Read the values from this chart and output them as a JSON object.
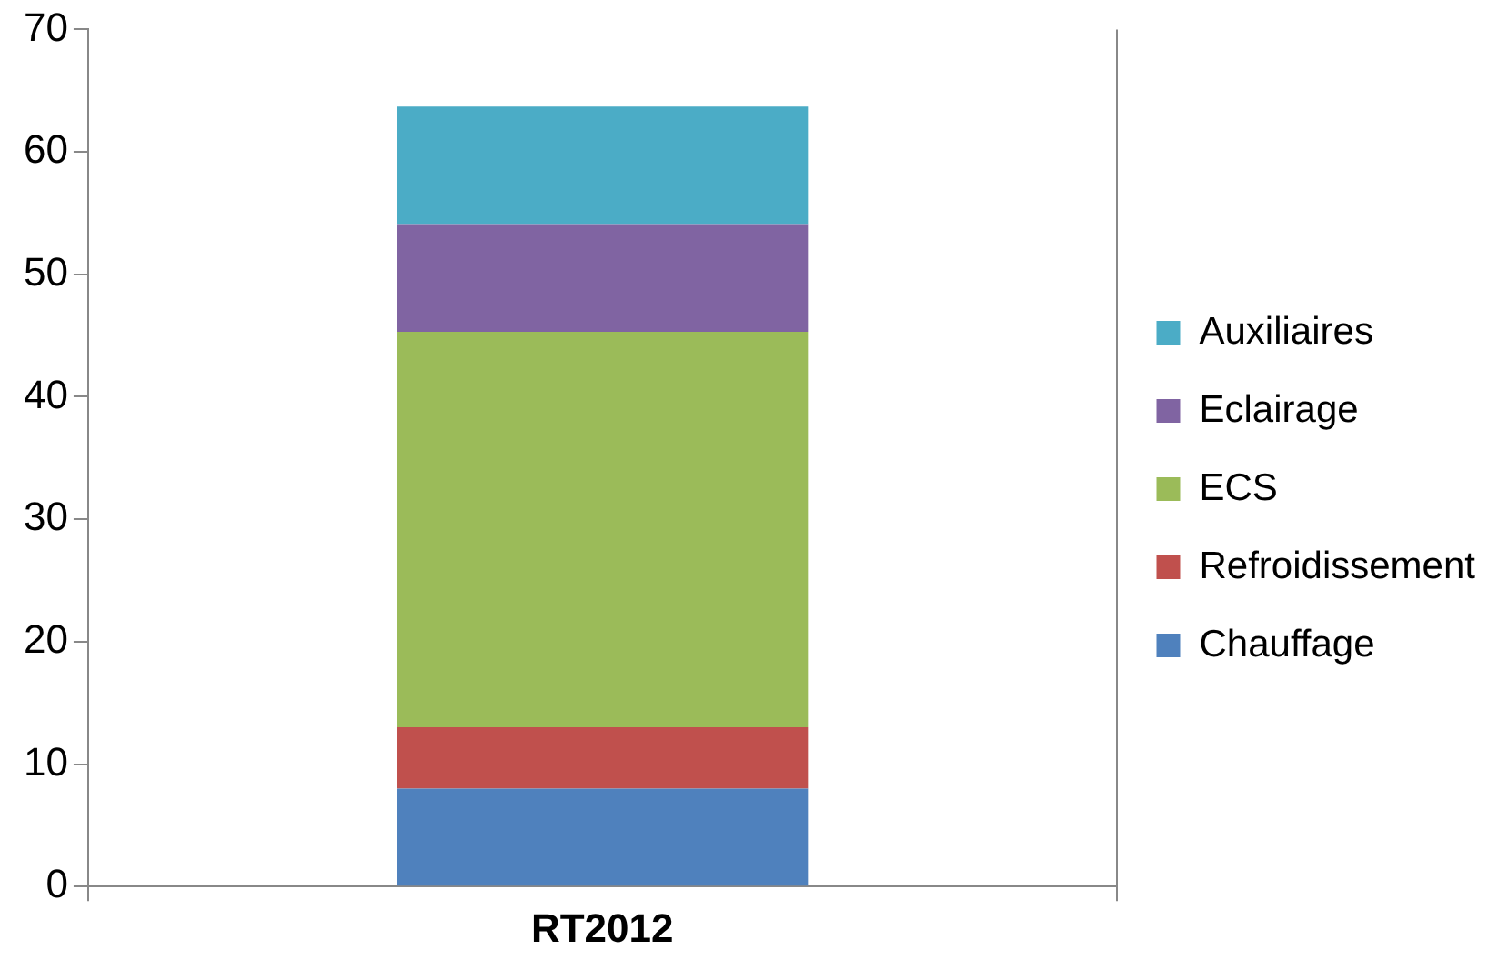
{
  "chart_data": {
    "type": "bar",
    "stacked": true,
    "categories": [
      "RT2012"
    ],
    "series": [
      {
        "name": "Chauffage",
        "color": "#4f81bd",
        "values": [
          8
        ]
      },
      {
        "name": "Refroidissement",
        "color": "#c0504d",
        "values": [
          5
        ]
      },
      {
        "name": "ECS",
        "color": "#9bbb59",
        "values": [
          32.3
        ]
      },
      {
        "name": "Eclairage",
        "color": "#8064a2",
        "values": [
          8.8
        ]
      },
      {
        "name": "Auxiliaires",
        "color": "#4bacc6",
        "values": [
          9.6
        ]
      }
    ],
    "ylim": [
      0,
      70
    ],
    "yticks": [
      0,
      10,
      20,
      30,
      40,
      50,
      60,
      70
    ],
    "legend": "right"
  }
}
